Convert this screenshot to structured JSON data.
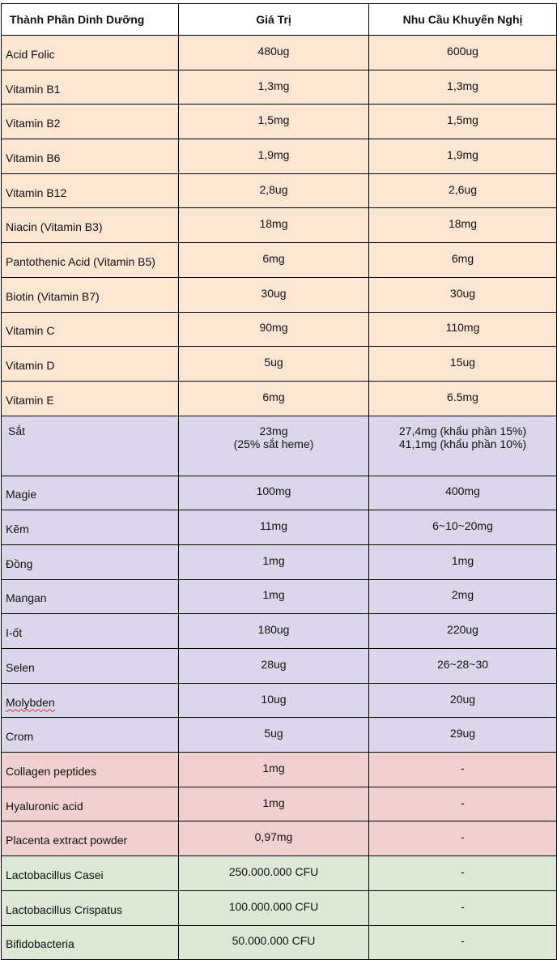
{
  "table": {
    "headers": [
      "Thành Phần Dinh Dưỡng",
      "Giá Trị",
      "Nhu Cầu Khuyến Nghị"
    ],
    "groups": {
      "vitamins": [
        {
          "name": "Acid Folic",
          "value": "480ug",
          "rec": "600ug"
        },
        {
          "name": "Vitamin B1",
          "value": "1,3mg",
          "rec": "1,3mg"
        },
        {
          "name": "Vitamin B2",
          "value": "1,5mg",
          "rec": "1,5mg"
        },
        {
          "name": "Vitamin B6",
          "value": "1,9mg",
          "rec": "1,9mg"
        },
        {
          "name": "Vitamin B12",
          "value": "2,8ug",
          "rec": "2,6ug"
        },
        {
          "name": "Niacin (Vitamin B3)",
          "value": "18mg",
          "rec": "18mg"
        },
        {
          "name": "Pantothenic Acid (Vitamin B5)",
          "value": "6mg",
          "rec": "6mg"
        },
        {
          "name": "Biotin (Vitamin B7)",
          "value": "30ug",
          "rec": "30ug"
        },
        {
          "name": "Vitamin C",
          "value": "90mg",
          "rec": "110mg"
        },
        {
          "name": "Vitamin D",
          "value": "5ug",
          "rec": "15ug"
        },
        {
          "name": "Vitamin E",
          "value": "6mg",
          "rec": "6.5mg"
        }
      ],
      "iron": {
        "name": "Sắt",
        "value_line1": "23mg",
        "value_line2": "(25% sắt heme)",
        "rec_line1": "27,4mg (khẩu phần 15%)",
        "rec_line2": "41,1mg (khẩu phần 10%)"
      },
      "minerals": [
        {
          "name": "Magie",
          "value": "100mg",
          "rec": "400mg"
        },
        {
          "name": "Kẽm",
          "value": "11mg",
          "rec": "6~10~20mg"
        },
        {
          "name": "Đồng",
          "value": "1mg",
          "rec": "1mg"
        },
        {
          "name": "Mangan",
          "value": "1mg",
          "rec": "2mg"
        },
        {
          "name": "I-ốt",
          "value": "180ug",
          "rec": "220ug"
        },
        {
          "name": "Selen",
          "value": "28ug",
          "rec": "26~28~30"
        },
        {
          "name": "Molybden",
          "value": "10ug",
          "rec": "20ug"
        },
        {
          "name": "Crom",
          "value": "5ug",
          "rec": "29ug"
        }
      ],
      "skin": [
        {
          "name": "Collagen peptides",
          "value": "1mg",
          "rec": "-"
        },
        {
          "name": "Hyaluronic acid",
          "value": "1mg",
          "rec": "-"
        },
        {
          "name": "Placenta extract powder",
          "value": "0,97mg",
          "rec": "-"
        }
      ],
      "probiotics": [
        {
          "name": "Lactobacillus Casei",
          "value": "250.000.000 CFU",
          "rec": "-"
        },
        {
          "name": "Lactobacillus Crispatus",
          "value": "100.000.000 CFU",
          "rec": "-"
        },
        {
          "name": "Bifidobacteria",
          "value": "50.000.000 CFU",
          "rec": "-"
        }
      ]
    },
    "colors": {
      "vitamins": "#fae6d2",
      "minerals": "#dcd6ea",
      "skin": "#f0d0d0",
      "probiotics": "#dde8d6",
      "spellcheck_underline": "#e0282a"
    }
  }
}
